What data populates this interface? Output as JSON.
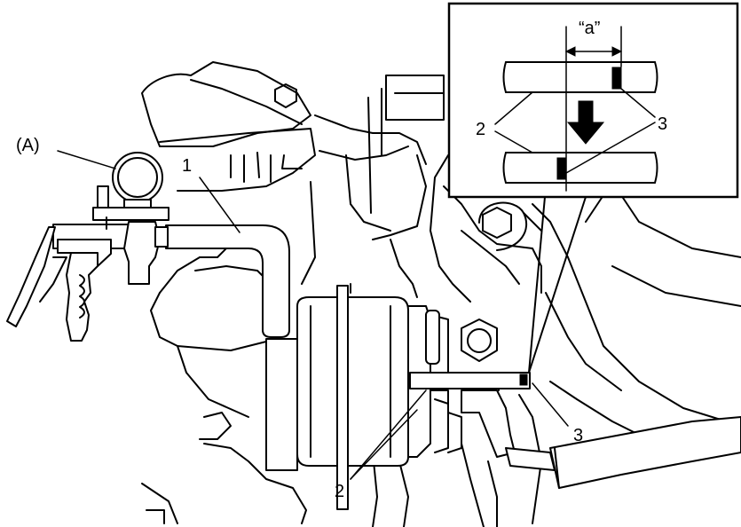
{
  "labels": {
    "tool_a": "(A)",
    "item_1": "1",
    "item_2": "2",
    "item_3": "3",
    "inset_item_2": "2",
    "inset_item_3": "3",
    "inset_dimension": "“a”"
  },
  "icons": {
    "direction_arrow": "arrow-down-icon"
  }
}
